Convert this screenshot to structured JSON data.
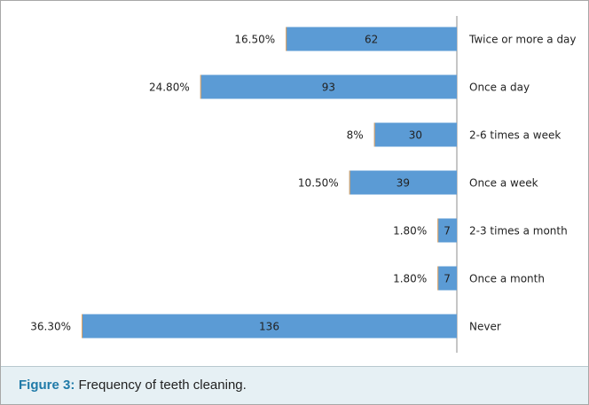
{
  "chart_data": {
    "type": "bar",
    "orientation": "horizontal",
    "bar_direction": "right-to-left",
    "categories": [
      "Twice or more a day",
      "Once a day",
      "2-6 times a week",
      "Once a week",
      "2-3 times a month",
      "Once a month",
      "Never"
    ],
    "values": [
      62,
      93,
      30,
      39,
      7,
      7,
      136
    ],
    "percent_labels": [
      "16.50%",
      "24.80%",
      "8%",
      "10.50%",
      "1.80%",
      "1.80%",
      "36.30%"
    ],
    "value_labels": [
      "62",
      "93",
      "30",
      "39",
      "7",
      "7",
      "136"
    ],
    "xlim": [
      0,
      160
    ],
    "grid": false,
    "category_labels_position": "right",
    "colors": {
      "bar": "#5b9bd5",
      "bar_edge": "#e9a55c",
      "axis": "#8c8c8c",
      "text": "#222222"
    }
  },
  "caption": {
    "label": "Figure 3:",
    "text": " Frequency of teeth cleaning."
  }
}
